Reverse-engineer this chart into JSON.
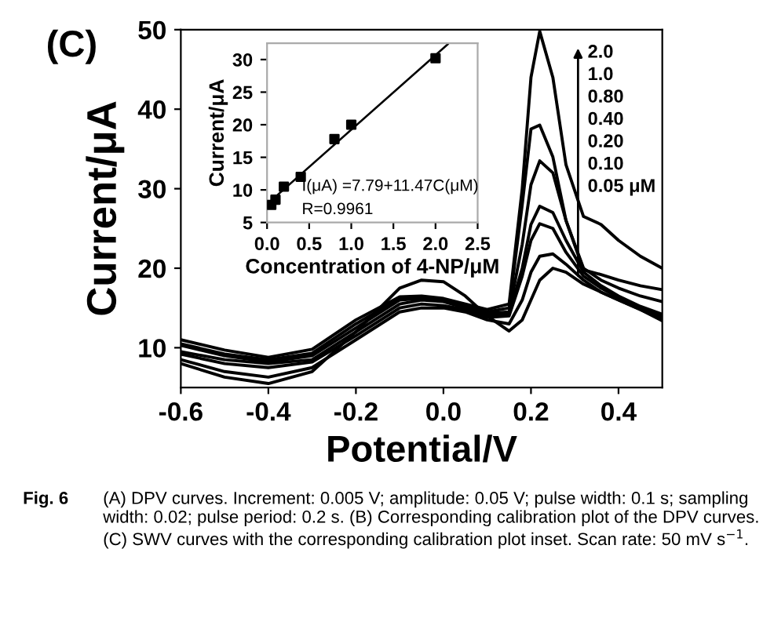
{
  "chart_data": [
    {
      "type": "line",
      "xlabel": "Potential/V",
      "ylabel": "Current/μA",
      "xlim": [
        -0.6,
        0.5
      ],
      "ylim": [
        5,
        50
      ],
      "xticks": [
        -0.6,
        -0.4,
        -0.2,
        {
          "value": 0,
          "label": "0.0"
        },
        0.2,
        0.4
      ],
      "yticks": [
        10,
        20,
        30,
        40,
        50
      ],
      "x": [
        -0.6,
        -0.5,
        -0.4,
        -0.3,
        -0.2,
        -0.1,
        -0.05,
        0.0,
        0.05,
        0.1,
        0.15,
        0.18,
        0.2,
        0.22,
        0.25,
        0.28,
        0.32,
        0.36,
        0.4,
        0.45,
        0.5
      ],
      "series": [
        {
          "color": "#000000",
          "values": [
            8.0,
            6.3,
            5.5,
            7.0,
            12.0,
            17.5,
            18.5,
            18.3,
            16.5,
            14.0,
            12.1,
            13.5,
            16.0,
            18.5,
            20.0,
            19.5,
            18.0,
            17.0,
            16.0,
            14.8,
            13.4
          ]
        },
        {
          "color": "#000000",
          "values": [
            8.5,
            7.0,
            6.3,
            7.5,
            11.0,
            14.5,
            15.0,
            15.0,
            14.5,
            13.5,
            13.0,
            16.0,
            19.5,
            21.5,
            21.8,
            20.5,
            18.5,
            17.0,
            16.0,
            14.8,
            13.6
          ]
        },
        {
          "color": "#000000",
          "values": [
            9.2,
            8.0,
            7.5,
            8.2,
            11.5,
            15.0,
            15.5,
            15.3,
            14.8,
            13.8,
            14.0,
            19.0,
            23.5,
            25.6,
            25.0,
            22.0,
            19.0,
            17.5,
            16.3,
            15.0,
            13.9
          ]
        },
        {
          "color": "#000000",
          "values": [
            9.5,
            8.5,
            8.0,
            8.5,
            12.0,
            15.5,
            16.0,
            15.8,
            15.0,
            14.0,
            14.3,
            20.0,
            25.5,
            27.8,
            27.0,
            23.5,
            19.5,
            17.8,
            16.5,
            15.2,
            14.2
          ]
        },
        {
          "color": "#000000",
          "values": [
            10.3,
            9.0,
            8.2,
            9.0,
            12.5,
            16.0,
            16.2,
            16.0,
            15.2,
            14.3,
            14.5,
            23.0,
            30.5,
            33.5,
            32.0,
            26.0,
            20.0,
            18.5,
            17.5,
            16.5,
            15.8
          ]
        },
        {
          "color": "#000000",
          "values": [
            10.5,
            9.2,
            8.5,
            9.3,
            13.0,
            16.2,
            16.3,
            16.0,
            15.3,
            14.5,
            15.0,
            28.0,
            37.5,
            38.0,
            34.0,
            26.0,
            19.8,
            19.2,
            18.5,
            17.8,
            17.3
          ]
        },
        {
          "color": "#000000",
          "values": [
            11.0,
            9.7,
            8.8,
            9.8,
            13.5,
            16.4,
            16.5,
            16.2,
            15.5,
            14.8,
            15.5,
            30.0,
            44.0,
            49.8,
            44.0,
            33.0,
            26.5,
            25.5,
            23.5,
            21.5,
            20.0
          ]
        }
      ],
      "annotations": [
        "(C)",
        "2.0",
        "1.0",
        "0.80",
        "0.40",
        "0.20",
        "0.10",
        "0.05 μM",
        "Fig. 6",
        "(A) DPV curves. Increment: 0.005 V; amplitude: 0.05 V; pulse width: 0.1 s; sampling width: 0.02; pulse period: 0.2 s. (B) Corresponding calibration plot of the DPV curves. (C) SWV curves with the corresponding calibration plot inset. Scan rate: 50 mV s$^{−1}$."
      ]
    },
    {
      "type": "scatter",
      "xlabel": "Concentration of 4-NP/μM",
      "ylabel": "Current/μA",
      "xlim": [
        0,
        2.5
      ],
      "ylim": [
        5,
        32.5
      ],
      "xticks": [
        {
          "value": 0,
          "label": "0.0"
        },
        0.5,
        {
          "value": 1,
          "label": "1.0"
        },
        1.5,
        {
          "value": 2,
          "label": "2.0"
        },
        2.5
      ],
      "yticks": [
        5,
        10,
        15,
        20,
        25,
        30
      ],
      "series": [
        {
          "type": "scatter",
          "marker": "square",
          "color": "#000000",
          "x": [
            0.05,
            0.1,
            0.2,
            0.4,
            0.8,
            1.0,
            2.0
          ],
          "values": [
            7.7,
            8.5,
            10.5,
            12.0,
            17.8,
            20.0,
            30.2
          ]
        },
        {
          "type": "line",
          "color": "#000000",
          "x": [
            0,
            2.15
          ],
          "values": [
            7.8,
            32.4
          ]
        }
      ],
      "annotations": [
        "I(μA) =7.79+11.47C(μM)",
        "R=0.9961"
      ]
    }
  ]
}
